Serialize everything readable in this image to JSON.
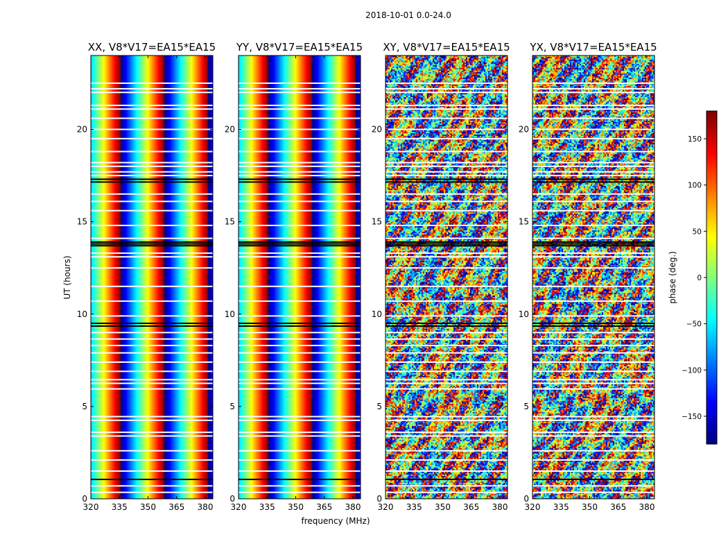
{
  "figure": {
    "suptitle": "2018-10-01 0.0-24.0",
    "xlabel": "frequency (MHz)",
    "ylabel": "UT (hours)",
    "colorbar_label": "phase (deg.)"
  },
  "chart_data": {
    "type": "heatmap",
    "suptitle": "2018-10-01 0.0-24.0",
    "xlabel": "frequency (MHz)",
    "ylabel": "UT (hours)",
    "colorbar": {
      "label": "phase (deg.)",
      "colormap": "jet",
      "range": [
        -180,
        180
      ],
      "ticks": [
        -150,
        -100,
        -50,
        0,
        50,
        100,
        150
      ],
      "tick_labels": [
        "−150",
        "−100",
        "−50",
        "0",
        "50",
        "100",
        "150"
      ]
    },
    "xlim": [
      320,
      384
    ],
    "xticks": [
      320,
      335,
      350,
      365,
      380
    ],
    "ylim": [
      0,
      24
    ],
    "yticks": [
      0,
      5,
      10,
      15,
      20
    ],
    "flagged_rows_black_ut": [
      1.05,
      9.35,
      9.5,
      13.7,
      13.8,
      13.9,
      17.15,
      17.3
    ],
    "flagged_rows_white_ut": [
      0.35,
      0.7,
      1.5,
      2.1,
      2.6,
      3.4,
      3.6,
      4.25,
      4.45,
      5.95,
      6.25,
      6.45,
      6.9,
      7.4,
      7.9,
      8.3,
      8.65,
      9.0,
      9.9,
      10.7,
      11.5,
      12.5,
      13.1,
      13.3,
      14.1,
      14.8,
      15.6,
      16.1,
      16.5,
      17.5,
      17.7,
      18.0,
      18.2,
      18.8,
      19.5,
      20.0,
      20.6,
      21.1,
      21.3,
      22.0,
      22.2,
      22.5
    ],
    "panels": [
      {
        "title": "XX, V8*V17=EA15*EA15",
        "pattern": "smooth phase wrap",
        "phase_wrap_frequencies_mhz": [
          335.5,
          358.5,
          381.5
        ],
        "show_ytick_labels": true
      },
      {
        "title": "YY, V8*V17=EA15*EA15",
        "pattern": "smooth phase wrap",
        "phase_wrap_frequencies_mhz": [
          335.5,
          358.5,
          381.5
        ],
        "show_ytick_labels": true
      },
      {
        "title": "XY, V8*V17=EA15*EA15",
        "pattern": "noisy",
        "show_ytick_labels": true
      },
      {
        "title": "YX, V8*V17=EA15*EA15",
        "pattern": "noisy",
        "show_ytick_labels": true
      }
    ]
  }
}
